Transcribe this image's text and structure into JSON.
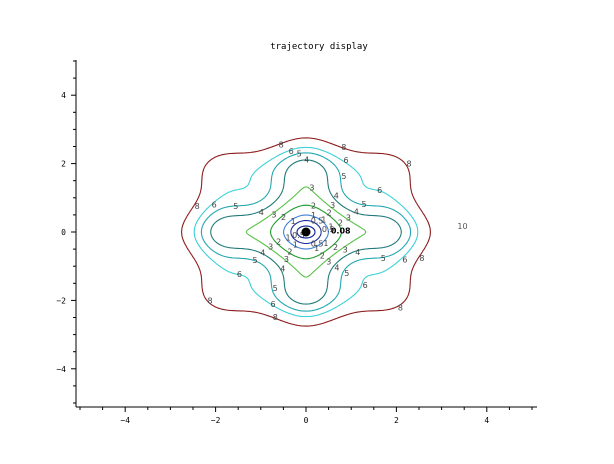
{
  "chart_data": {
    "type": "contour",
    "title": "trajectory display",
    "xlabel": "",
    "ylabel": "",
    "xlim": [
      -5,
      5
    ],
    "ylim": [
      -5,
      5
    ],
    "xticks": [
      -4,
      -2,
      0,
      2,
      4
    ],
    "yticks": [
      -4,
      -2,
      0,
      2,
      4
    ],
    "grid": false,
    "levels": [
      {
        "value": 0.5,
        "label": "0.5",
        "color": "#1c2f9e"
      },
      {
        "value": 1,
        "label": "1",
        "color": "#3d7fd6"
      },
      {
        "value": 2,
        "label": "2",
        "color": "#1f9c2a"
      },
      {
        "value": 3,
        "label": "3",
        "color": "#56c245"
      },
      {
        "value": 4,
        "label": "4",
        "color": "#1f7a78"
      },
      {
        "value": 5,
        "label": "5",
        "color": "#22a7b0"
      },
      {
        "value": 6,
        "label": "6",
        "color": "#3cd0d6"
      },
      {
        "value": 8,
        "label": "8",
        "color": "#8c1b1b"
      }
    ],
    "annotations": [
      {
        "text": "0.08",
        "x": 0.55,
        "y": 0.05,
        "color": "#000000"
      },
      {
        "text": "10",
        "x": 3.35,
        "y": 0.18,
        "color": "#555555"
      }
    ],
    "marker": {
      "x": 0,
      "y": 0,
      "color": "#000000"
    }
  }
}
